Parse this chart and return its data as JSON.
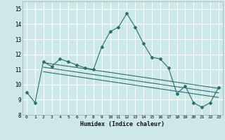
{
  "xlabel": "Humidex (Indice chaleur)",
  "ylabel": "",
  "background_color": "#cce8e8",
  "grid_color": "#ffffff",
  "line_color": "#2a6e6e",
  "xlim": [
    -0.5,
    23.5
  ],
  "ylim": [
    8,
    15.5
  ],
  "yticks": [
    8,
    9,
    10,
    11,
    12,
    13,
    14,
    15
  ],
  "xticks": [
    0,
    1,
    2,
    3,
    4,
    5,
    6,
    7,
    8,
    9,
    10,
    11,
    12,
    13,
    14,
    15,
    16,
    17,
    18,
    19,
    20,
    21,
    22,
    23
  ],
  "main_series": [
    9.5,
    8.8,
    11.5,
    11.2,
    11.7,
    11.5,
    11.3,
    11.1,
    11.0,
    12.5,
    13.5,
    13.8,
    14.7,
    13.8,
    12.7,
    11.8,
    11.7,
    11.1,
    9.4,
    9.9,
    8.8,
    8.5,
    8.8,
    9.8
  ],
  "trend_lines": [
    {
      "x0": 2,
      "y0": 11.45,
      "x1": 23,
      "y1": 9.75
    },
    {
      "x0": 2,
      "y0": 11.15,
      "x1": 23,
      "y1": 9.45
    },
    {
      "x0": 2,
      "y0": 10.85,
      "x1": 23,
      "y1": 9.15
    }
  ]
}
